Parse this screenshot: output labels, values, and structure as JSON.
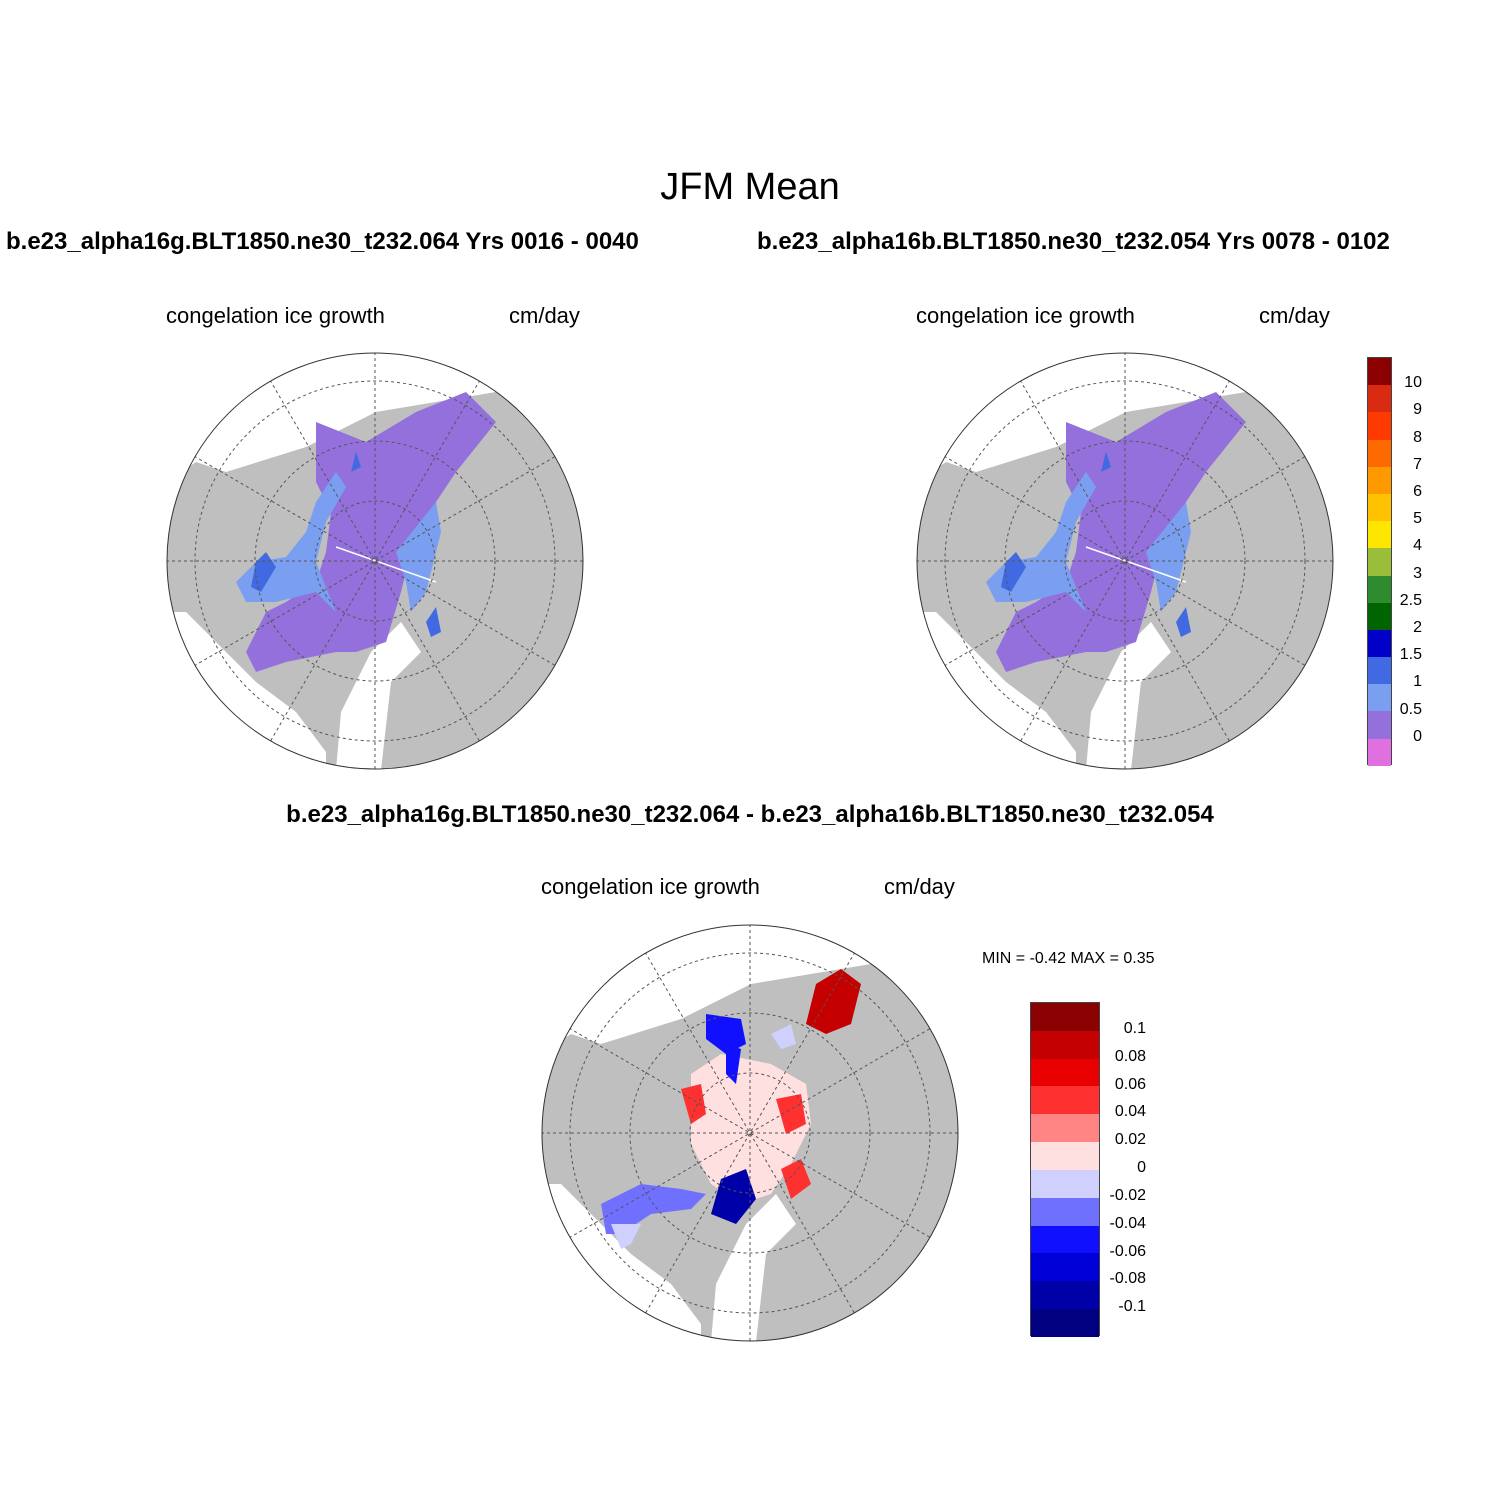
{
  "title": "JFM Mean",
  "panels": {
    "left": {
      "case": "b.e23_alpha16g.BLT1850.ne30_t232.064  Yrs 0016 - 0040",
      "variable": "congelation ice growth",
      "units": "cm/day"
    },
    "right": {
      "case": "b.e23_alpha16b.BLT1850.ne30_t232.054  Yrs 0078 - 0102",
      "variable": "congelation ice growth",
      "units": "cm/day"
    },
    "diff": {
      "case": "b.e23_alpha16g.BLT1850.ne30_t232.064 - b.e23_alpha16b.BLT1850.ne30_t232.054",
      "variable": "congelation ice growth",
      "units": "cm/day",
      "minmax": "MIN =  -0.42 MAX =   0.35"
    }
  },
  "colorbar_main": {
    "labels": [
      "10",
      "9",
      "8",
      "7",
      "6",
      "5",
      "4",
      "3",
      "2.5",
      "2",
      "1.5",
      "1",
      "0.5",
      "0"
    ],
    "colors": [
      "#8b0000",
      "#d92b12",
      "#ff3a00",
      "#ff6a00",
      "#ff9900",
      "#ffc200",
      "#ffe600",
      "#9bbe3a",
      "#2e8b2e",
      "#006400",
      "#0000c8",
      "#4169e1",
      "#7a9ff0",
      "#9370db",
      "#e070e0"
    ]
  },
  "colorbar_diff": {
    "labels": [
      "0.1",
      "0.08",
      "0.06",
      "0.04",
      "0.02",
      "0",
      "-0.02",
      "-0.04",
      "-0.06",
      "-0.08",
      "-0.1"
    ],
    "colors": [
      "#8b0000",
      "#c40000",
      "#e80000",
      "#ff3030",
      "#ff8585",
      "#ffe0e0",
      "#d0d0ff",
      "#7070ff",
      "#1010ff",
      "#0000d8",
      "#0000a8",
      "#000080"
    ]
  },
  "colors": {
    "land": "#bfbfbf",
    "ocean": "#ffffff"
  }
}
